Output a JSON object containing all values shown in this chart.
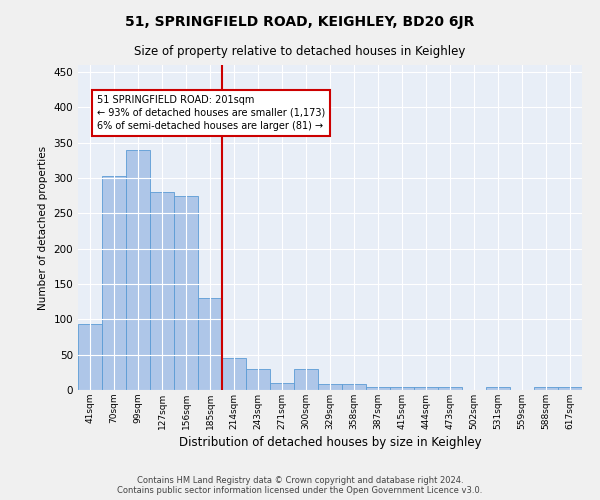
{
  "title": "51, SPRINGFIELD ROAD, KEIGHLEY, BD20 6JR",
  "subtitle": "Size of property relative to detached houses in Keighley",
  "xlabel": "Distribution of detached houses by size in Keighley",
  "ylabel": "Number of detached properties",
  "footer_line1": "Contains HM Land Registry data © Crown copyright and database right 2024.",
  "footer_line2": "Contains public sector information licensed under the Open Government Licence v3.0.",
  "bins": [
    "41sqm",
    "70sqm",
    "99sqm",
    "127sqm",
    "156sqm",
    "185sqm",
    "214sqm",
    "243sqm",
    "271sqm",
    "300sqm",
    "329sqm",
    "358sqm",
    "387sqm",
    "415sqm",
    "444sqm",
    "473sqm",
    "502sqm",
    "531sqm",
    "559sqm",
    "588sqm",
    "617sqm"
  ],
  "values": [
    93,
    303,
    340,
    280,
    275,
    130,
    46,
    30,
    10,
    30,
    8,
    8,
    4,
    4,
    4,
    4,
    0,
    4,
    0,
    4,
    4
  ],
  "bar_color": "#aec6e8",
  "bar_edge_color": "#5b9bd5",
  "vline_x_idx": 6,
  "vline_color": "#cc0000",
  "annotation_text": "51 SPRINGFIELD ROAD: 201sqm\n← 93% of detached houses are smaller (1,173)\n6% of semi-detached houses are larger (81) →",
  "annotation_box_edge_color": "#cc0000",
  "ylim": [
    0,
    460
  ],
  "yticks": [
    0,
    50,
    100,
    150,
    200,
    250,
    300,
    350,
    400,
    450
  ],
  "background_color": "#e8eef7",
  "grid_color": "#ffffff",
  "fig_bg_color": "#f0f0f0"
}
